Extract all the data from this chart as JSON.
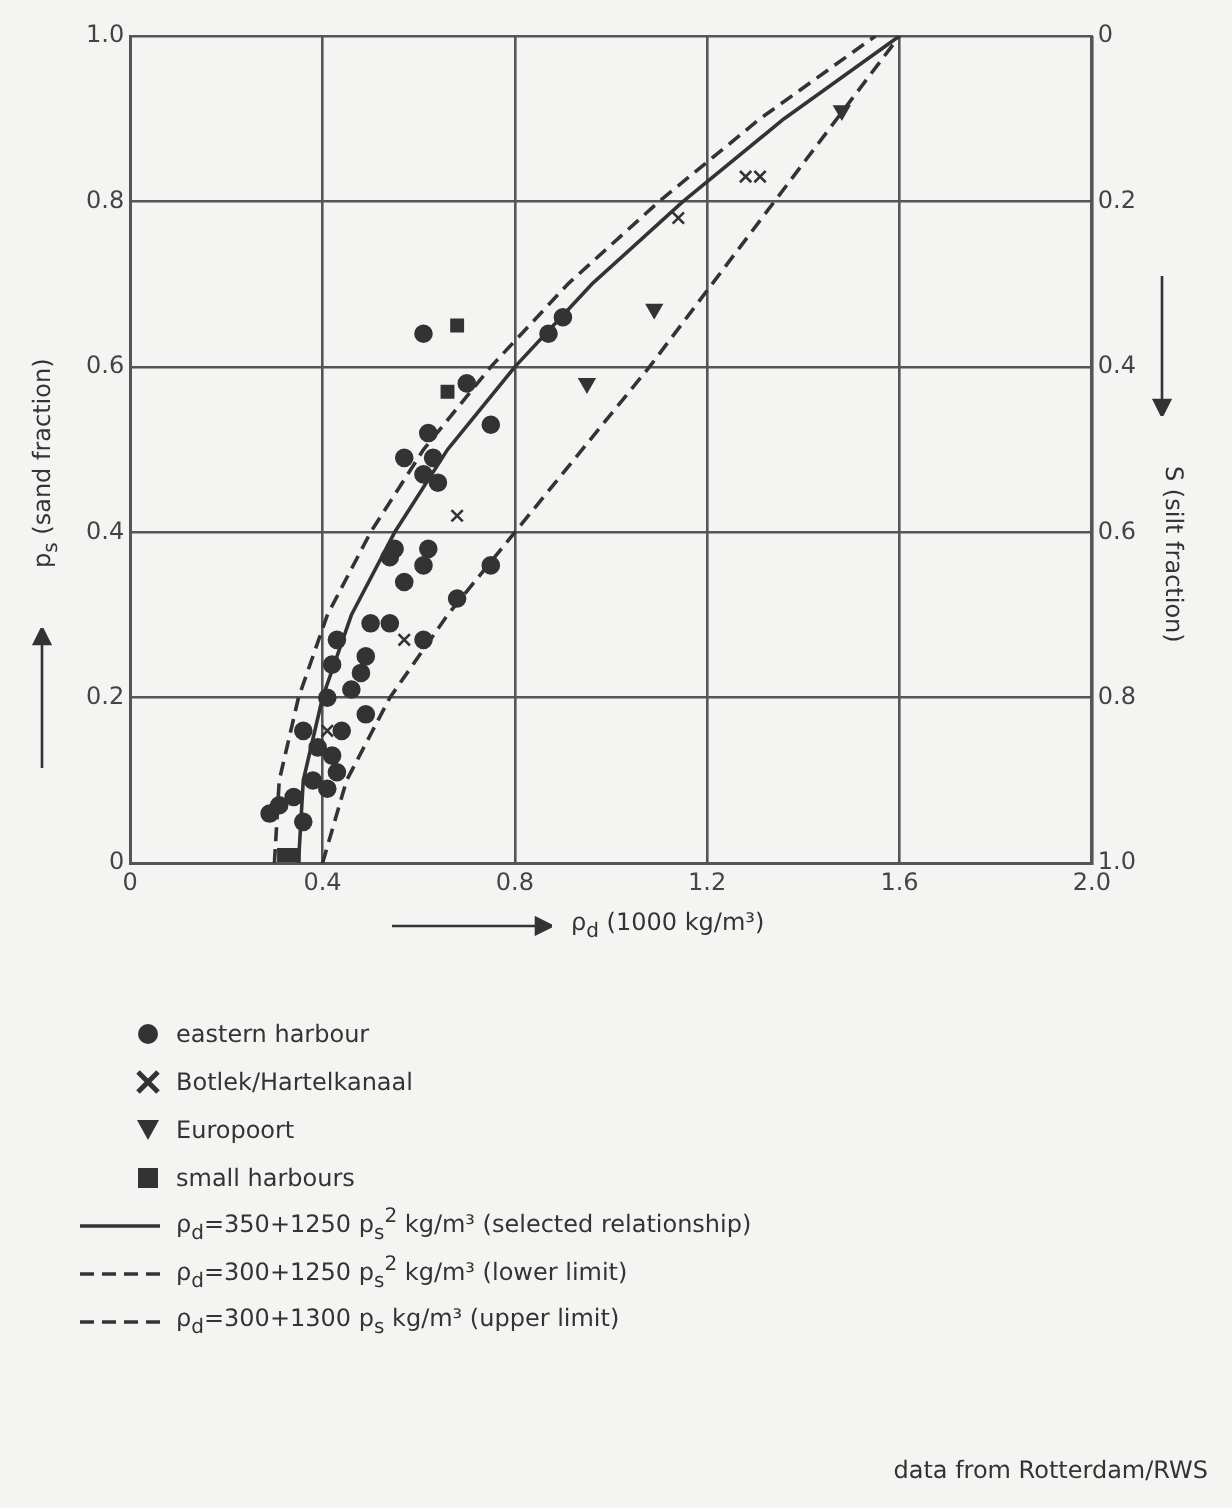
{
  "chart_data": {
    "type": "scatter",
    "xlabel": "ρ$_{d}$ (1000 kg/m³)",
    "ylabel": "p$_{s}$ (sand fraction)",
    "y2label": "S (silt fraction)",
    "xlim": [
      0,
      2
    ],
    "xticks": [
      0,
      0.4,
      0.8,
      1.2,
      1.6,
      {
        "value": 2,
        "label": "2.0"
      }
    ],
    "ylim": [
      0,
      1
    ],
    "yticks": [
      0,
      0.2,
      0.4,
      0.6,
      0.8,
      {
        "value": 1,
        "label": "1.0"
      }
    ],
    "y2lim": [
      1,
      0
    ],
    "y2ticks": [
      0,
      0.2,
      0.4,
      0.6,
      0.8,
      {
        "value": 1,
        "label": "1.0"
      }
    ],
    "grid": true,
    "legend": "bottom",
    "annotations": [
      "data from Rotterdam/RWS"
    ],
    "series": [
      {
        "name": "eastern harbour",
        "marker": "circle",
        "color": "#333333",
        "x": [
          0.61,
          0.7,
          0.87,
          0.9,
          0.75,
          0.62,
          0.57,
          0.63,
          0.64,
          0.61,
          0.55,
          0.54,
          0.62,
          0.61,
          0.57,
          0.75,
          0.68,
          0.5,
          0.54,
          0.61,
          0.49,
          0.43,
          0.48,
          0.46,
          0.49,
          0.41,
          0.36,
          0.39,
          0.42,
          0.43,
          0.38,
          0.34,
          0.31,
          0.29,
          0.36,
          0.41,
          0.44,
          0.42
        ],
        "values": [
          0.64,
          0.58,
          0.64,
          0.66,
          0.53,
          0.52,
          0.49,
          0.49,
          0.46,
          0.47,
          0.38,
          0.37,
          0.38,
          0.36,
          0.34,
          0.36,
          0.32,
          0.29,
          0.29,
          0.27,
          0.25,
          0.27,
          0.23,
          0.21,
          0.18,
          0.2,
          0.16,
          0.14,
          0.13,
          0.11,
          0.1,
          0.08,
          0.07,
          0.06,
          0.05,
          0.09,
          0.16,
          0.24
        ]
      },
      {
        "name": "Botlek/Hartelkanaal",
        "marker": "cross",
        "color": "#333333",
        "x": [
          0.57,
          1.14,
          1.28,
          1.31,
          0.68,
          0.41
        ],
        "values": [
          0.27,
          0.78,
          0.83,
          0.83,
          0.42,
          0.16
        ]
      },
      {
        "name": "Europoort",
        "marker": "triangle",
        "color": "#333333",
        "x": [
          0.95,
          1.09,
          1.48
        ],
        "values": [
          0.58,
          0.67,
          0.91
        ]
      },
      {
        "name": "small harbours",
        "marker": "square",
        "color": "#333333",
        "x": [
          0.68,
          0.32,
          0.34,
          0.66
        ],
        "values": [
          0.65,
          0.01,
          0.01,
          0.57
        ]
      },
      {
        "name": "ρ$_{d}$=350+1250 p$_{s}$$^{2}$ kg/m³ (selected relationship)",
        "type": "line",
        "marker": "none",
        "line_style": "solid",
        "color": "#333333",
        "x": [
          0.35,
          0.36,
          0.4,
          0.46,
          0.55,
          0.66,
          0.8,
          0.96,
          1.15,
          1.36,
          1.6
        ],
        "values": [
          0,
          0.1,
          0.2,
          0.3,
          0.4,
          0.5,
          0.6,
          0.7,
          0.8,
          0.9,
          1.0
        ]
      },
      {
        "name": "ρ$_{d}$=300+1250 p$_{s}$$^{2}$ kg/m³ (lower limit)",
        "type": "line",
        "marker": "none",
        "line_style": "dashed",
        "color": "#333333",
        "x": [
          0.3,
          0.31,
          0.35,
          0.41,
          0.5,
          0.61,
          0.75,
          0.91,
          1.1,
          1.31,
          1.55
        ],
        "values": [
          0,
          0.1,
          0.2,
          0.3,
          0.4,
          0.5,
          0.6,
          0.7,
          0.8,
          0.9,
          1.0
        ]
      },
      {
        "name": "ρ$_{d}$=300+1300 p$_{s}$ kg/m³ (upper limit)",
        "type": "line",
        "marker": "none",
        "line_style": "dashed",
        "color": "#333333",
        "x": [
          0.4,
          0.45,
          0.54,
          0.66,
          0.8,
          1.08,
          1.34,
          1.6
        ],
        "values": [
          0,
          0.1,
          0.2,
          0.3,
          0.4,
          0.6,
          0.8,
          1.0
        ]
      }
    ]
  }
}
